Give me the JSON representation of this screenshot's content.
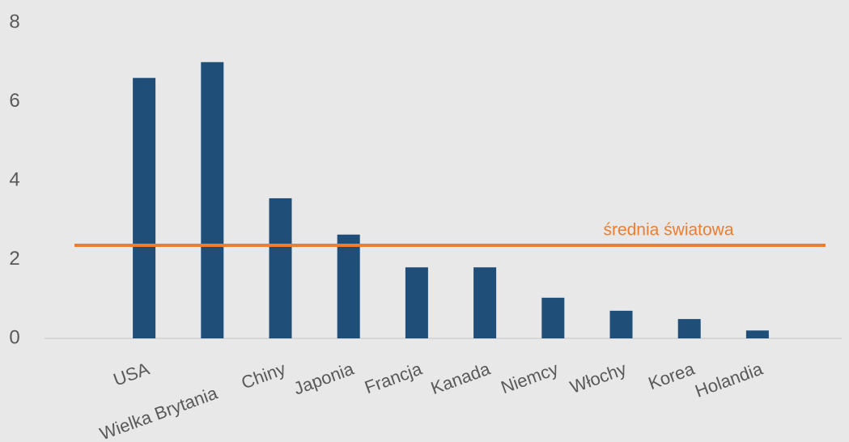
{
  "chart_data": {
    "type": "bar",
    "categories": [
      "USA",
      "Wielka Brytania",
      "Chiny",
      "Japonia",
      "Francja",
      "Kanada",
      "Niemcy",
      "Włochy",
      "Korea",
      "Holandia"
    ],
    "values": [
      6.6,
      7.0,
      3.55,
      2.63,
      1.8,
      1.8,
      1.03,
      0.7,
      0.49,
      0.2
    ],
    "color": "#1f4e79",
    "ylim": [
      0,
      8
    ],
    "yticks": [
      0,
      2,
      4,
      6,
      8
    ],
    "grid": false,
    "reference": {
      "label": "średnia światowa",
      "value": 2.36,
      "color": "#ed7d31"
    }
  }
}
